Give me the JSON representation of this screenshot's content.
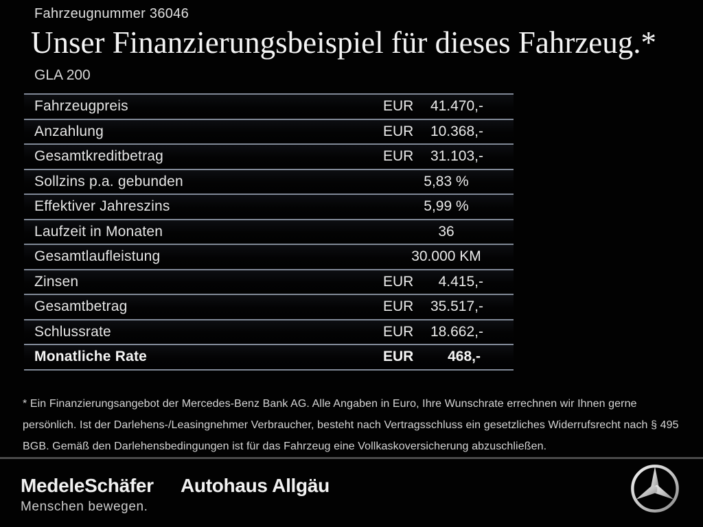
{
  "header": {
    "vehicle_number": "Fahrzeugnummer 36046",
    "title": "Unser Finanzierungsbeispiel für dieses Fahrzeug.*",
    "model": "GLA 200"
  },
  "table": {
    "rows": [
      {
        "label": "Fahrzeugpreis",
        "currency": "EUR",
        "value": "41.470,-",
        "align": "right"
      },
      {
        "label": "Anzahlung",
        "currency": "EUR",
        "value": "10.368,-",
        "align": "right"
      },
      {
        "label": "Gesamtkreditbetrag",
        "currency": "EUR",
        "value": "31.103,-",
        "align": "right"
      },
      {
        "label": "Sollzins p.a. gebunden",
        "value": "5,83 %",
        "align": "center"
      },
      {
        "label": "Effektiver Jahreszins",
        "value": "5,99 %",
        "align": "center"
      },
      {
        "label": "Laufzeit in Monaten",
        "value": "36",
        "align": "center"
      },
      {
        "label": "Gesamtlaufleistung",
        "value": "30.000 KM",
        "align": "center"
      },
      {
        "label": "Zinsen",
        "currency": "EUR",
        "value": "4.415,-",
        "align": "right"
      },
      {
        "label": "Gesamtbetrag",
        "currency": "EUR",
        "value": "35.517,-",
        "align": "right"
      },
      {
        "label": "Schlussrate",
        "currency": "EUR",
        "value": "18.662,-",
        "align": "right"
      },
      {
        "label": "Monatliche Rate",
        "currency": "EUR",
        "value": "468,-",
        "align": "right",
        "emphasis": true
      }
    ]
  },
  "footnote": "* Ein Finanzierungsangebot der Mercedes-Benz Bank AG. Alle Angaben in Euro, Ihre Wunschrate errechnen wir Ihnen gerne persönlich. Ist der Darlehens-/Leasingnehmer Verbraucher, besteht nach Vertragsschluss ein gesetzliches Widerrufsrecht nach § 495 BGB. Gemäß den Darlehensbedingungen ist für das Fahrzeug eine Vollkaskoversicherung abzuschließen.",
  "footer": {
    "dealer_primary": "MedeleSchäfer",
    "dealer_secondary": "Autohaus Allgäu",
    "dealer_tagline": "Menschen bewegen.",
    "brand_icon": "mercedes-star-icon"
  },
  "colors": {
    "background": "#020202",
    "separator_line": "#828a98",
    "text_primary": "#e8e8e8",
    "footer_divider": "#4d4d4d"
  }
}
